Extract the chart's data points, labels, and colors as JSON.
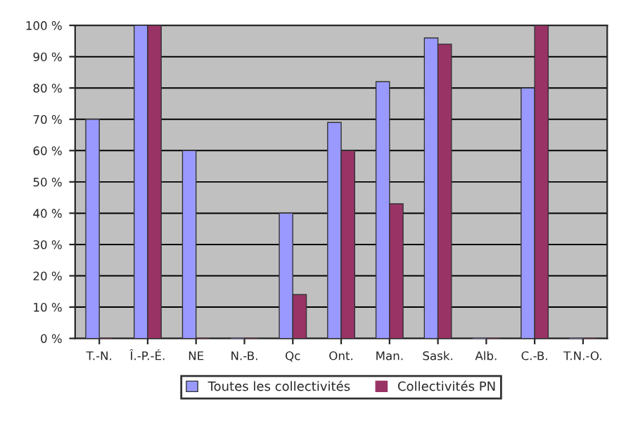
{
  "chart_data": {
    "type": "bar",
    "categories": [
      "T.-N.",
      "Î.-P.-É.",
      "NE",
      "N.-B.",
      "Qc",
      "Ont.",
      "Man.",
      "Sask.",
      "Alb.",
      "C.-B.",
      "T.N.-O."
    ],
    "series": [
      {
        "name": "Toutes les collectivités",
        "color": "#9999ff",
        "values": [
          70,
          100,
          60,
          0,
          40,
          69,
          82,
          96,
          0,
          80,
          0
        ]
      },
      {
        "name": "Collectivités PN",
        "color": "#993366",
        "values": [
          0,
          100,
          0,
          0,
          14,
          60,
          43,
          94,
          0,
          100,
          0
        ]
      }
    ],
    "ylim": [
      0,
      100
    ],
    "yticks": [
      {
        "value": 0,
        "label": "0 %"
      },
      {
        "value": 10,
        "label": "10 %"
      },
      {
        "value": 20,
        "label": "20 %"
      },
      {
        "value": 30,
        "label": "30 %"
      },
      {
        "value": 40,
        "label": "40 %"
      },
      {
        "value": 50,
        "label": "50 %"
      },
      {
        "value": 60,
        "label": "60 %"
      },
      {
        "value": 70,
        "label": "70 %"
      },
      {
        "value": 80,
        "label": "80 %"
      },
      {
        "value": 90,
        "label": "90 %"
      },
      {
        "value": 100,
        "label": "100 %"
      }
    ],
    "grid": "y",
    "legend": "bottom"
  }
}
